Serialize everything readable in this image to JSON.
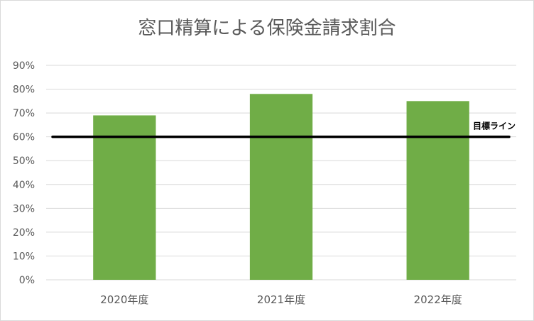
{
  "chart_data": {
    "type": "bar",
    "title": "窓口精算による保険金請求割合",
    "categories": [
      "2020年度",
      "2021年度",
      "2022年度"
    ],
    "values": [
      69,
      78,
      75
    ],
    "ylim": [
      0,
      90
    ],
    "yticks": [
      "0%",
      "10%",
      "20%",
      "30%",
      "40%",
      "50%",
      "60%",
      "70%",
      "80%",
      "90%"
    ],
    "y_unit": "%",
    "grid": true,
    "legend": "none",
    "reference_line": {
      "label": "目標ライン",
      "value": 60
    },
    "colors": {
      "bar": "#70ad47",
      "line": "#000000",
      "grid": "#d9d9d9",
      "text": "#595959"
    }
  }
}
